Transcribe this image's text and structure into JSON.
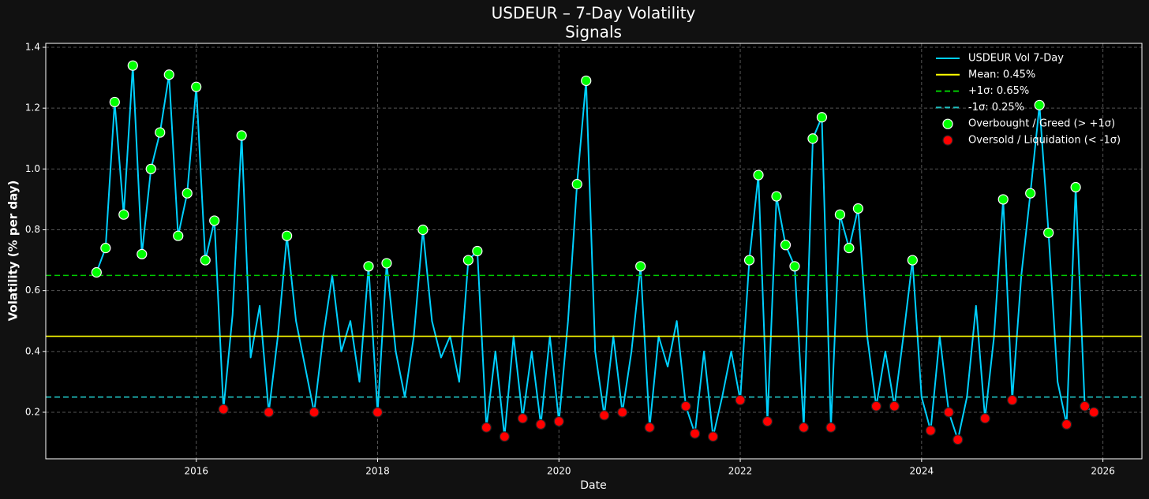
{
  "chart_data": {
    "type": "line",
    "title": "USDEUR – 7-Day Volatility",
    "subtitle": "Signals",
    "x_label": "Date",
    "y_label": "Volatility (% per day)",
    "xlim": [
      2014.34,
      2026.43
    ],
    "ylim": [
      0.047,
      1.413
    ],
    "xticks": [
      2016,
      2018,
      2020,
      2022,
      2024,
      2026
    ],
    "yticks": [
      0.2,
      0.4,
      0.6,
      0.8,
      {
        "value": 1,
        "label": "1.0"
      },
      1.2,
      1.4
    ],
    "grid": true,
    "legend": "upper right",
    "series": [
      {
        "name": "USDEUR Vol 7-Day",
        "type": "line",
        "color": "#00d0ff",
        "x": [
          2014.9,
          2015.0,
          2015.1,
          2015.2,
          2015.3,
          2015.4,
          2015.5,
          2015.6,
          2015.7,
          2015.8,
          2015.9,
          2016.0,
          2016.1,
          2016.2,
          2016.3,
          2016.4,
          2016.5,
          2016.6,
          2016.7,
          2016.8,
          2016.9,
          2017.0,
          2017.1,
          2017.2,
          2017.3,
          2017.4,
          2017.5,
          2017.6,
          2017.7,
          2017.8,
          2017.9,
          2018.0,
          2018.1,
          2018.2,
          2018.3,
          2018.4,
          2018.5,
          2018.6,
          2018.7,
          2018.8,
          2018.9,
          2019.0,
          2019.1,
          2019.2,
          2019.3,
          2019.4,
          2019.5,
          2019.6,
          2019.7,
          2019.8,
          2019.9,
          2020.0,
          2020.1,
          2020.2,
          2020.3,
          2020.4,
          2020.5,
          2020.6,
          2020.7,
          2020.8,
          2020.9,
          2021.0,
          2021.1,
          2021.2,
          2021.3,
          2021.4,
          2021.5,
          2021.6,
          2021.7,
          2021.8,
          2021.9,
          2022.0,
          2022.1,
          2022.2,
          2022.3,
          2022.4,
          2022.5,
          2022.6,
          2022.7,
          2022.8,
          2022.9,
          2023.0,
          2023.1,
          2023.2,
          2023.3,
          2023.4,
          2023.5,
          2023.6,
          2023.7,
          2023.8,
          2023.9,
          2024.0,
          2024.1,
          2024.2,
          2024.3,
          2024.4,
          2024.5,
          2024.6,
          2024.7,
          2024.8,
          2024.9,
          2025.0,
          2025.1,
          2025.2,
          2025.3,
          2025.4,
          2025.5,
          2025.6,
          2025.7,
          2025.8,
          2025.9
        ],
        "values": [
          0.66,
          0.74,
          1.22,
          0.85,
          1.34,
          0.72,
          1.0,
          1.12,
          1.31,
          0.78,
          0.92,
          1.27,
          0.7,
          0.83,
          0.21,
          0.52,
          1.11,
          0.38,
          0.55,
          0.2,
          0.45,
          0.78,
          0.5,
          0.35,
          0.2,
          0.45,
          0.65,
          0.4,
          0.5,
          0.3,
          0.68,
          0.2,
          0.69,
          0.4,
          0.25,
          0.45,
          0.8,
          0.5,
          0.38,
          0.45,
          0.3,
          0.7,
          0.73,
          0.15,
          0.4,
          0.12,
          0.45,
          0.18,
          0.4,
          0.16,
          0.45,
          0.17,
          0.5,
          0.95,
          1.29,
          0.4,
          0.19,
          0.45,
          0.2,
          0.4,
          0.68,
          0.15,
          0.45,
          0.35,
          0.5,
          0.22,
          0.13,
          0.4,
          0.12,
          0.25,
          0.4,
          0.24,
          0.7,
          0.98,
          0.17,
          0.91,
          0.75,
          0.68,
          0.15,
          1.1,
          1.17,
          0.15,
          0.85,
          0.74,
          0.87,
          0.45,
          0.22,
          0.4,
          0.22,
          0.45,
          0.7,
          0.25,
          0.14,
          0.45,
          0.2,
          0.11,
          0.25,
          0.55,
          0.18,
          0.45,
          0.9,
          0.24,
          0.65,
          0.92,
          1.21,
          0.79,
          0.3,
          0.16,
          0.94,
          0.22,
          0.2
        ]
      },
      {
        "name": "Overbought / Greed (> +1σ)",
        "type": "scatter",
        "color": "#00ff00",
        "edge": "#ffffff",
        "x": [
          2014.9,
          2015.0,
          2015.1,
          2015.2,
          2015.3,
          2015.4,
          2015.5,
          2015.6,
          2015.7,
          2015.8,
          2015.9,
          2016.0,
          2016.1,
          2016.2,
          2016.5,
          2017.0,
          2017.9,
          2018.1,
          2018.5,
          2019.0,
          2019.1,
          2020.2,
          2020.3,
          2020.9,
          2022.1,
          2022.2,
          2022.4,
          2022.5,
          2022.6,
          2022.8,
          2022.9,
          2023.1,
          2023.2,
          2023.3,
          2023.9,
          2024.9,
          2025.2,
          2025.3,
          2025.4,
          2025.7
        ],
        "values": [
          0.66,
          0.74,
          1.22,
          0.85,
          1.34,
          0.72,
          1.0,
          1.12,
          1.31,
          0.78,
          0.92,
          1.27,
          0.7,
          0.83,
          1.11,
          0.78,
          0.68,
          0.69,
          0.8,
          0.7,
          0.73,
          0.95,
          1.29,
          0.68,
          0.7,
          0.98,
          0.91,
          0.75,
          0.68,
          1.1,
          1.17,
          0.85,
          0.74,
          0.87,
          0.7,
          0.9,
          0.92,
          1.21,
          0.79,
          0.94
        ]
      },
      {
        "name": "Oversold / Liquidation (< -1σ)",
        "type": "scatter",
        "color": "#ff0000",
        "edge": "#222222",
        "x": [
          2016.3,
          2016.8,
          2017.3,
          2018.0,
          2019.2,
          2019.4,
          2019.6,
          2019.8,
          2020.0,
          2020.5,
          2020.7,
          2021.0,
          2021.4,
          2021.5,
          2021.7,
          2022.0,
          2022.3,
          2022.7,
          2023.0,
          2023.5,
          2023.7,
          2024.1,
          2024.3,
          2024.4,
          2024.7,
          2025.0,
          2025.6,
          2025.8,
          2025.9
        ],
        "values": [
          0.21,
          0.2,
          0.2,
          0.2,
          0.15,
          0.12,
          0.18,
          0.16,
          0.17,
          0.19,
          0.2,
          0.15,
          0.22,
          0.13,
          0.12,
          0.24,
          0.17,
          0.15,
          0.15,
          0.22,
          0.22,
          0.14,
          0.2,
          0.11,
          0.18,
          0.24,
          0.16,
          0.22,
          0.2
        ]
      }
    ],
    "reference_lines": [
      {
        "name": "Mean: 0.45%",
        "value": 0.45,
        "color": "#ffff00",
        "style": "solid"
      },
      {
        "name": "+1σ: 0.65%",
        "value": 0.65,
        "color": "#00cc00",
        "style": "dashed"
      },
      {
        "name": "-1σ: 0.25%",
        "value": 0.25,
        "color": "#20c0c0",
        "style": "dashed"
      }
    ]
  }
}
